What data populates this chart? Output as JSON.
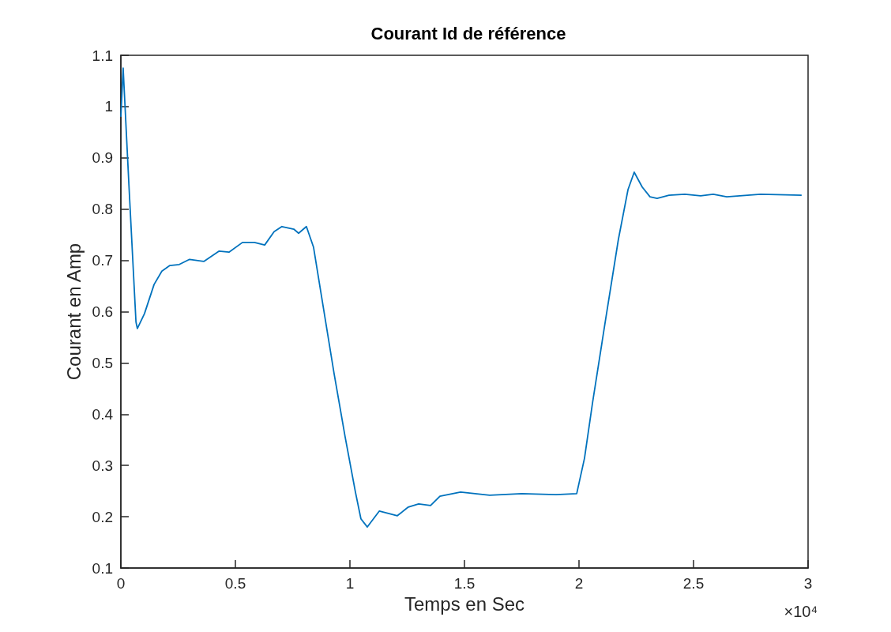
{
  "chart_data": {
    "type": "line",
    "title": "Courant Id de référence",
    "xlabel": "Temps en Sec",
    "ylabel": "Courant en Amp",
    "annotations": [
      "×10⁴"
    ],
    "xlim": [
      0,
      3
    ],
    "xticks": [
      0,
      0.5,
      1,
      1.5,
      2,
      2.5,
      3
    ],
    "ylim": [
      0.1,
      1.1
    ],
    "yticks": [
      0.1,
      0.2,
      0.3,
      0.4,
      0.5,
      0.6,
      0.7,
      0.8,
      0.9,
      1,
      1.1
    ],
    "grid": false,
    "marker": "none",
    "line_style": "solid",
    "series": [
      {
        "color": "#0072bd",
        "x": [
          0,
          0.01,
          0.035,
          0.066,
          0.072,
          0.103,
          0.145,
          0.179,
          0.214,
          0.255,
          0.3,
          0.362,
          0.428,
          0.472,
          0.531,
          0.583,
          0.628,
          0.669,
          0.703,
          0.755,
          0.776,
          0.81,
          0.841,
          0.876,
          0.931,
          0.979,
          1.024,
          1.048,
          1.076,
          1.128,
          1.207,
          1.255,
          1.3,
          1.352,
          1.393,
          1.483,
          1.61,
          1.75,
          1.9,
          1.99,
          2.024,
          2.059,
          2.117,
          2.172,
          2.214,
          2.241,
          2.276,
          2.31,
          2.341,
          2.393,
          2.462,
          2.531,
          2.586,
          2.645,
          2.793,
          2.972
        ],
        "values": [
          0.98,
          1.075,
          0.849,
          0.58,
          0.567,
          0.596,
          0.653,
          0.679,
          0.69,
          0.692,
          0.702,
          0.698,
          0.718,
          0.716,
          0.735,
          0.735,
          0.73,
          0.756,
          0.766,
          0.761,
          0.753,
          0.766,
          0.726,
          0.63,
          0.479,
          0.356,
          0.248,
          0.196,
          0.18,
          0.211,
          0.202,
          0.219,
          0.225,
          0.222,
          0.24,
          0.248,
          0.242,
          0.245,
          0.243,
          0.245,
          0.314,
          0.422,
          0.587,
          0.741,
          0.838,
          0.872,
          0.843,
          0.824,
          0.821,
          0.827,
          0.829,
          0.826,
          0.829,
          0.824,
          0.829,
          0.827
        ]
      }
    ]
  }
}
